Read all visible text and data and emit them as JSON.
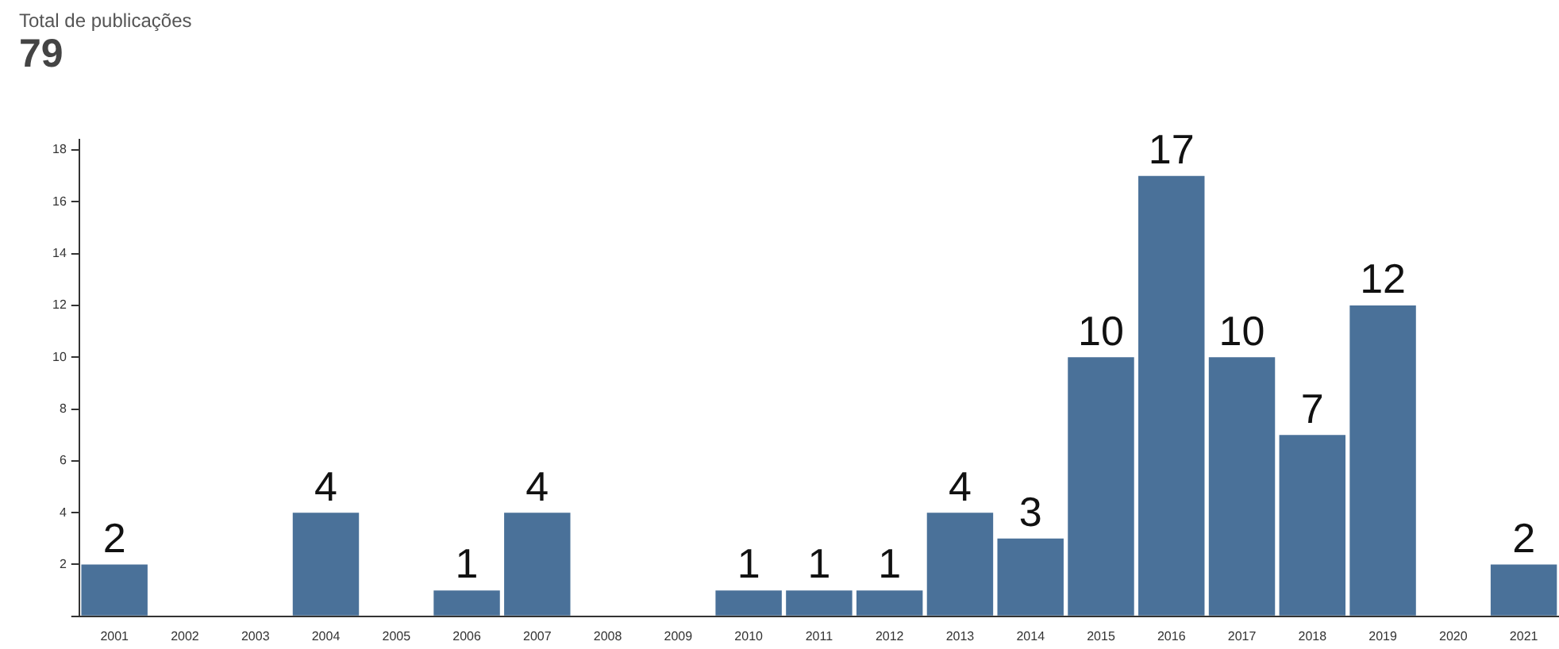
{
  "chart_data": {
    "type": "bar",
    "title": "Total de publicações",
    "subtitle": "79",
    "categories": [
      "2001",
      "2002",
      "2003",
      "2004",
      "2005",
      "2006",
      "2007",
      "2008",
      "2009",
      "2010",
      "2011",
      "2012",
      "2013",
      "2014",
      "2015",
      "2016",
      "2017",
      "2018",
      "2019",
      "2020",
      "2021"
    ],
    "values": [
      2,
      0,
      0,
      4,
      0,
      1,
      4,
      0,
      0,
      1,
      1,
      1,
      4,
      3,
      10,
      17,
      10,
      7,
      12,
      0,
      2
    ],
    "value_labels": [
      "2",
      null,
      null,
      "4",
      null,
      "1",
      "4",
      null,
      null,
      "1",
      "1",
      "1",
      "4",
      "3",
      "10",
      "17",
      "10",
      "7",
      "12",
      null,
      "2"
    ],
    "color": "#4a7199",
    "ylim": [
      0,
      18.4
    ],
    "yticks": [
      {
        "value": 0,
        "label": null
      },
      2,
      4,
      6,
      8,
      10,
      12,
      14,
      16,
      18
    ],
    "grid": false,
    "legend": false
  }
}
